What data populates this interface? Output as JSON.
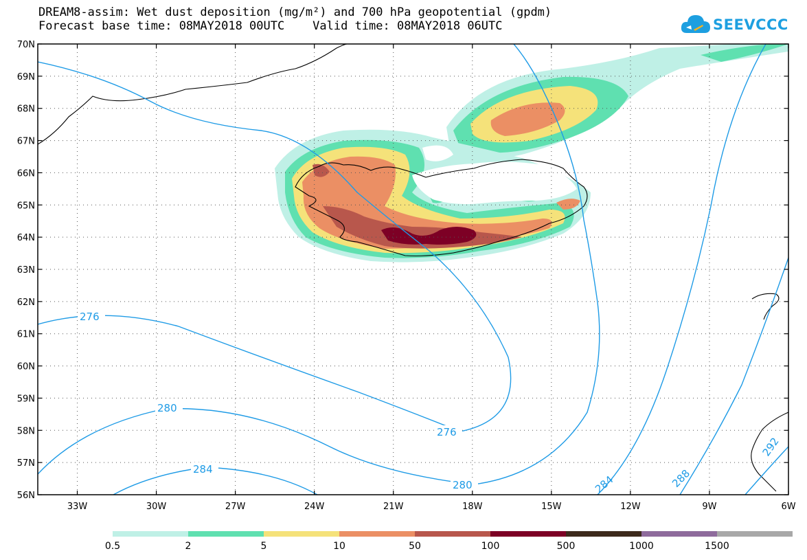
{
  "title": {
    "line1": "DREAM8-assim: Wet dust deposition (mg/m²) and 700 hPa geopotential (gpdm)",
    "line2": "Forecast base time: 08MAY2018 00UTC    Valid time: 08MAY2018 06UTC"
  },
  "logo": {
    "text": "SEEVCCC",
    "icon": "cloud-icon"
  },
  "map": {
    "lat_labels": [
      "70N",
      "69N",
      "68N",
      "67N",
      "66N",
      "65N",
      "64N",
      "63N",
      "62N",
      "61N",
      "60N",
      "59N",
      "58N",
      "57N",
      "56N"
    ],
    "lon_labels": [
      "33W",
      "30W",
      "27W",
      "24W",
      "21W",
      "18W",
      "15W",
      "12W",
      "9W",
      "6W"
    ],
    "grid": "dotted",
    "contour_color": "#1e9be6",
    "contour_labels": [
      "276",
      "276",
      "280",
      "280",
      "284",
      "284",
      "288",
      "292"
    ]
  },
  "colorbar": {
    "labels": [
      "0.5",
      "2",
      "5",
      "10",
      "50",
      "100",
      "500",
      "1000",
      "1500"
    ],
    "colors": [
      "#bff0e6",
      "#5fe0b0",
      "#f5e27a",
      "#eb8f64",
      "#b8574c",
      "#7d0025",
      "#3d2a1c",
      "#8e6b9c",
      "#a8a8a8"
    ]
  }
}
